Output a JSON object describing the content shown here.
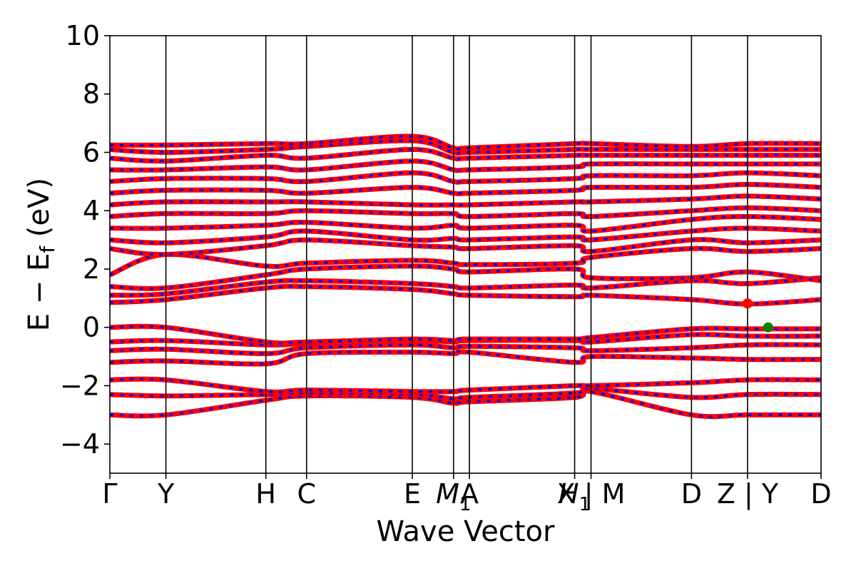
{
  "chart_data": {
    "type": "line",
    "title": "",
    "xlabel": "Wave Vector",
    "ylabel": "E − E",
    "ylabel_sub": "f",
    "ylabel_unit": " (eV)",
    "ylim": [
      -5,
      10
    ],
    "yticks": [
      -4,
      -2,
      0,
      2,
      4,
      6,
      8,
      10
    ],
    "ytick_labels": [
      "−4",
      "−2",
      "0",
      "2",
      "4",
      "6",
      "8",
      "10"
    ],
    "xlim": [
      0,
      13.45
    ],
    "kpoints": [
      {
        "label": "Γ",
        "x": 0
      },
      {
        "label": "Y",
        "x": 1.06
      },
      {
        "label": "H",
        "x": 2.95
      },
      {
        "label": "C",
        "x": 3.72
      },
      {
        "label": "E",
        "x": 5.72
      },
      {
        "label": "M",
        "sub": "1",
        "x": 6.5,
        "italic": true
      },
      {
        "label": "A",
        "x": 6.8
      },
      {
        "label": "H",
        "sub": "1",
        "x": 8.79,
        "italic": true
      },
      {
        "label": "X | M",
        "x": 9.1
      },
      {
        "label": "D",
        "x": 11.0
      },
      {
        "label": "Z | Y",
        "x": 12.06
      },
      {
        "label": "D",
        "x": 13.45
      }
    ],
    "series": [
      {
        "values": [],
        "color": "#ff0000",
        "style": "solid"
      },
      {
        "values": [],
        "color": "#0000ff",
        "style": "dashed"
      }
    ],
    "bands": [
      {
        "x": [
          0,
          1.06,
          2.95,
          3.72,
          5.72,
          6.5,
          6.8,
          8.79,
          9.1,
          11.0,
          12.06,
          13.45
        ],
        "y": [
          -3.0,
          -3.0,
          -2.5,
          -2.35,
          -2.4,
          -2.6,
          -2.55,
          -2.4,
          -2.2,
          -3.0,
          -3.0,
          -3.0
        ]
      },
      {
        "x": [
          0,
          1.06,
          2.95,
          3.72,
          5.72,
          6.5,
          6.8,
          8.79,
          9.1,
          11.0,
          12.06,
          13.45
        ],
        "y": [
          -2.3,
          -2.35,
          -2.3,
          -2.25,
          -2.3,
          -2.45,
          -2.4,
          -2.25,
          -2.1,
          -2.4,
          -2.3,
          -2.3
        ]
      },
      {
        "x": [
          0,
          1.06,
          2.95,
          3.72,
          5.72,
          6.5,
          6.8,
          8.79,
          9.1,
          11.0,
          12.06,
          13.45
        ],
        "y": [
          -1.8,
          -1.8,
          -2.2,
          -2.15,
          -2.2,
          -2.2,
          -2.15,
          -2.0,
          -2.0,
          -1.9,
          -1.8,
          -1.8
        ]
      },
      {
        "x": [
          0,
          1.06,
          2.95,
          3.72,
          5.72,
          6.5,
          6.8,
          8.79,
          9.1,
          11.0,
          12.06,
          13.45
        ],
        "y": [
          -1.2,
          -1.15,
          -1.25,
          -0.9,
          -0.85,
          -0.9,
          -0.85,
          -1.2,
          -1.0,
          -1.05,
          -1.1,
          -1.1
        ]
      },
      {
        "x": [
          0,
          1.06,
          2.95,
          3.72,
          5.72,
          6.5,
          6.8,
          8.79,
          9.1,
          11.0,
          12.06,
          13.45
        ],
        "y": [
          -0.8,
          -0.75,
          -0.9,
          -0.7,
          -0.6,
          -0.7,
          -0.65,
          -0.7,
          -0.8,
          -0.7,
          -0.6,
          -0.6
        ]
      },
      {
        "x": [
          0,
          1.06,
          2.95,
          3.72,
          5.72,
          6.5,
          6.8,
          8.79,
          9.1,
          11.0,
          12.06,
          13.45
        ],
        "y": [
          -0.5,
          -0.45,
          -0.6,
          -0.55,
          -0.45,
          -0.5,
          -0.45,
          -0.45,
          -0.5,
          -0.25,
          -0.3,
          -0.3
        ]
      },
      {
        "x": [
          0,
          1.06,
          2.95,
          3.72,
          5.72,
          6.5,
          6.8,
          8.79,
          9.1,
          11.0,
          12.06,
          13.45
        ],
        "y": [
          0.0,
          0.0,
          -0.5,
          -0.5,
          -0.4,
          -0.45,
          -0.4,
          -0.4,
          -0.35,
          -0.05,
          -0.05,
          -0.05
        ]
      },
      {
        "x": [
          0,
          1.06,
          2.95,
          3.72,
          5.72,
          6.5,
          6.8,
          8.79,
          9.1,
          11.0,
          12.06,
          13.45
        ],
        "y": [
          0.85,
          0.95,
          1.35,
          1.4,
          1.3,
          1.15,
          1.1,
          1.05,
          1.1,
          0.95,
          0.8,
          0.95
        ]
      },
      {
        "x": [
          0,
          1.06,
          2.95,
          3.72,
          5.72,
          6.5,
          6.8,
          8.79,
          9.1,
          11.0,
          12.06,
          13.45
        ],
        "y": [
          1.1,
          1.15,
          1.55,
          1.6,
          1.5,
          1.4,
          1.35,
          1.45,
          1.35,
          1.6,
          1.5,
          1.7
        ]
      },
      {
        "x": [
          0,
          1.06,
          2.95,
          3.72,
          5.72,
          6.5,
          6.8,
          8.79,
          9.1,
          11.0,
          12.06,
          13.45
        ],
        "y": [
          1.4,
          1.35,
          1.8,
          2.0,
          2.1,
          2.0,
          1.9,
          2.0,
          1.7,
          1.7,
          1.9,
          1.6
        ]
      },
      {
        "x": [
          0,
          1.06,
          2.95,
          3.72,
          5.72,
          6.5,
          6.8,
          8.79,
          9.1,
          11.0,
          12.06,
          13.45
        ],
        "y": [
          1.8,
          2.5,
          2.1,
          2.2,
          2.3,
          2.2,
          2.15,
          2.2,
          2.4,
          2.7,
          2.6,
          2.7
        ]
      },
      {
        "x": [
          0,
          1.06,
          2.95,
          3.72,
          5.72,
          6.5,
          6.8,
          8.79,
          9.1,
          11.0,
          12.06,
          13.45
        ],
        "y": [
          2.7,
          2.5,
          2.8,
          3.0,
          2.8,
          2.75,
          2.7,
          2.8,
          2.6,
          3.0,
          2.9,
          3.0
        ]
      },
      {
        "x": [
          0,
          1.06,
          2.95,
          3.72,
          5.72,
          6.5,
          6.8,
          8.79,
          9.1,
          11.0,
          12.06,
          13.45
        ],
        "y": [
          3.0,
          2.9,
          3.1,
          3.3,
          3.0,
          3.05,
          3.0,
          3.1,
          3.0,
          3.3,
          3.4,
          3.3
        ]
      },
      {
        "x": [
          0,
          1.06,
          2.95,
          3.72,
          5.72,
          6.5,
          6.8,
          8.79,
          9.1,
          11.0,
          12.06,
          13.45
        ],
        "y": [
          3.4,
          3.4,
          3.5,
          3.6,
          3.4,
          3.5,
          3.4,
          3.5,
          3.3,
          3.7,
          3.8,
          3.7
        ]
      },
      {
        "x": [
          0,
          1.06,
          2.95,
          3.72,
          5.72,
          6.5,
          6.8,
          8.79,
          9.1,
          11.0,
          12.06,
          13.45
        ],
        "y": [
          3.8,
          3.9,
          3.9,
          4.0,
          3.9,
          3.9,
          3.8,
          3.9,
          3.8,
          4.0,
          4.1,
          4.0
        ]
      },
      {
        "x": [
          0,
          1.06,
          2.95,
          3.72,
          5.72,
          6.5,
          6.8,
          8.79,
          9.1,
          11.0,
          12.06,
          13.45
        ],
        "y": [
          4.2,
          4.3,
          4.3,
          4.3,
          4.2,
          4.2,
          4.2,
          4.3,
          4.3,
          4.4,
          4.5,
          4.4
        ]
      },
      {
        "x": [
          0,
          1.06,
          2.95,
          3.72,
          5.72,
          6.5,
          6.8,
          8.79,
          9.1,
          11.0,
          12.06,
          13.45
        ],
        "y": [
          4.6,
          4.7,
          4.7,
          4.6,
          4.8,
          4.6,
          4.6,
          4.7,
          4.8,
          4.8,
          4.9,
          4.8
        ]
      },
      {
        "x": [
          0,
          1.06,
          2.95,
          3.72,
          5.72,
          6.5,
          6.8,
          8.79,
          9.1,
          11.0,
          12.06,
          13.45
        ],
        "y": [
          5.0,
          5.1,
          5.1,
          5.0,
          5.3,
          5.0,
          5.0,
          5.1,
          5.2,
          5.2,
          5.3,
          5.2
        ]
      },
      {
        "x": [
          0,
          1.06,
          2.95,
          3.72,
          5.72,
          6.5,
          6.8,
          8.79,
          9.1,
          11.0,
          12.06,
          13.45
        ],
        "y": [
          5.4,
          5.4,
          5.5,
          5.4,
          5.7,
          5.4,
          5.4,
          5.5,
          5.6,
          5.6,
          5.6,
          5.6
        ]
      },
      {
        "x": [
          0,
          1.06,
          2.95,
          3.72,
          5.72,
          6.5,
          6.8,
          8.79,
          9.1,
          11.0,
          12.06,
          13.45
        ],
        "y": [
          5.8,
          5.7,
          5.9,
          5.8,
          6.1,
          5.8,
          5.8,
          5.9,
          5.9,
          5.9,
          5.9,
          5.9
        ]
      },
      {
        "x": [
          0,
          1.06,
          2.95,
          3.72,
          5.72,
          6.5,
          6.8,
          8.79,
          9.1,
          11.0,
          12.06,
          13.45
        ],
        "y": [
          6.1,
          6.0,
          6.1,
          6.2,
          6.4,
          6.0,
          6.0,
          6.1,
          6.1,
          6.1,
          6.1,
          6.1
        ]
      },
      {
        "x": [
          0,
          1.06,
          2.95,
          3.72,
          5.72,
          6.5,
          6.8,
          8.79,
          9.1,
          11.0,
          12.06,
          13.45
        ],
        "y": [
          6.25,
          6.25,
          6.3,
          6.3,
          6.55,
          6.15,
          6.15,
          6.3,
          6.3,
          6.2,
          6.3,
          6.3
        ]
      }
    ],
    "markers": [
      {
        "name": "cbm-marker",
        "x": 12.06,
        "y": 0.82,
        "color": "#ff0000"
      },
      {
        "name": "vbm-marker",
        "x": 12.45,
        "y": 0.0,
        "color": "#008000"
      }
    ],
    "grid": false,
    "legend": "none"
  }
}
